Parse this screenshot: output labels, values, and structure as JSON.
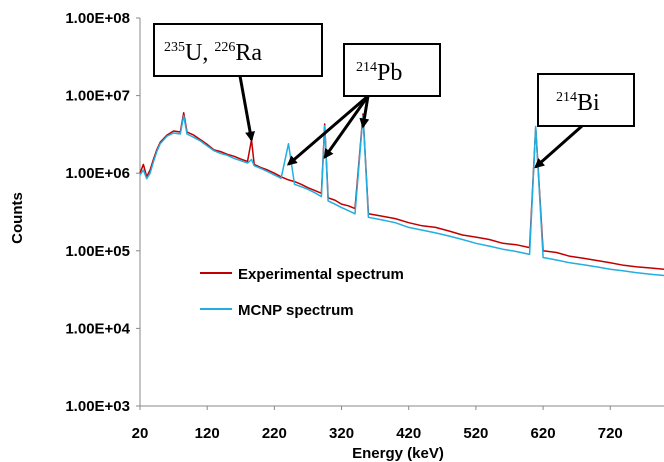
{
  "chart_data": {
    "type": "line",
    "title": "",
    "xlabel": "Energy (keV)",
    "ylabel": "Counts",
    "xlim": [
      20,
      800
    ],
    "ylim": [
      1000,
      100000000
    ],
    "y_scale": "log",
    "x_ticks": [
      "20",
      "120",
      "220",
      "320",
      "420",
      "520",
      "620",
      "720"
    ],
    "y_ticks": [
      "1.00E+03",
      "1.00E+04",
      "1.00E+05",
      "1.00E+06",
      "1.00E+07",
      "1.00E+08"
    ],
    "grid": false,
    "legend_position": "lower-left",
    "series": [
      {
        "name": "Experimental spectrum",
        "color": "#c00000",
        "x": [
          20,
          25,
          30,
          35,
          40,
          45,
          50,
          60,
          70,
          80,
          85,
          90,
          100,
          110,
          120,
          130,
          140,
          150,
          160,
          170,
          180,
          186,
          190,
          200,
          210,
          220,
          230,
          241,
          250,
          260,
          270,
          280,
          290,
          295,
          300,
          310,
          320,
          330,
          340,
          352,
          360,
          380,
          400,
          420,
          440,
          460,
          480,
          500,
          520,
          540,
          560,
          580,
          600,
          609,
          620,
          640,
          660,
          680,
          700,
          720,
          740,
          760,
          780,
          800
        ],
        "values": [
          1000000,
          1300000,
          900000,
          1100000,
          1500000,
          2000000,
          2500000,
          3100000,
          3500000,
          3400000,
          6000000,
          3400000,
          3100000,
          2700000,
          2350000,
          2000000,
          1900000,
          1750000,
          1650000,
          1520000,
          1420000,
          2700000,
          1300000,
          1180000,
          1100000,
          1000000,
          900000,
          820000,
          780000,
          720000,
          650000,
          600000,
          550000,
          4300000,
          480000,
          450000,
          400000,
          380000,
          350000,
          5800000,
          300000,
          280000,
          260000,
          230000,
          210000,
          200000,
          180000,
          160000,
          150000,
          140000,
          125000,
          120000,
          110000,
          3900000,
          100000,
          95000,
          85000,
          80000,
          75000,
          70000,
          65000,
          62000,
          60000,
          58000
        ]
      },
      {
        "name": "MCNP spectrum",
        "color": "#22aee0",
        "x": [
          20,
          25,
          30,
          35,
          40,
          45,
          50,
          60,
          70,
          80,
          85,
          90,
          100,
          110,
          120,
          130,
          140,
          150,
          160,
          170,
          180,
          186,
          190,
          200,
          210,
          220,
          230,
          241,
          250,
          260,
          270,
          280,
          290,
          295,
          300,
          310,
          320,
          330,
          340,
          352,
          360,
          380,
          400,
          420,
          440,
          460,
          480,
          500,
          520,
          540,
          560,
          580,
          600,
          609,
          620,
          640,
          660,
          680,
          700,
          720,
          740,
          760,
          780,
          800
        ],
        "values": [
          950000,
          1100000,
          850000,
          1000000,
          1400000,
          1900000,
          2400000,
          3000000,
          3300000,
          3200000,
          5500000,
          3200000,
          2900000,
          2600000,
          2250000,
          1950000,
          1800000,
          1700000,
          1550000,
          1450000,
          1350000,
          1500000,
          1250000,
          1150000,
          1050000,
          950000,
          860000,
          2400000,
          720000,
          670000,
          620000,
          560000,
          500000,
          4100000,
          440000,
          400000,
          360000,
          330000,
          300000,
          5500000,
          270000,
          250000,
          230000,
          200000,
          185000,
          170000,
          155000,
          140000,
          125000,
          115000,
          105000,
          98000,
          90000,
          4000000,
          82000,
          76000,
          70000,
          66000,
          62000,
          58000,
          55000,
          52000,
          50000,
          48000
        ]
      }
    ],
    "annotations": [
      {
        "sup1": "235",
        "main1": "U, ",
        "sup2": "226",
        "main2": "Ra"
      },
      {
        "sup1": "214",
        "main1": "Pb"
      },
      {
        "sup1": "214",
        "main1": "Bi"
      }
    ]
  }
}
